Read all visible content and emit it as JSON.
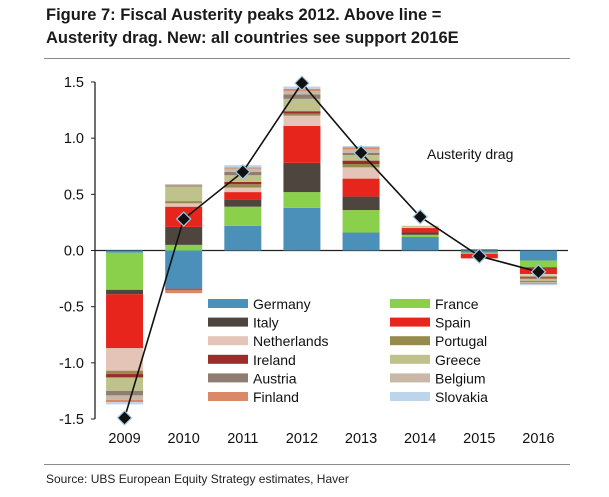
{
  "title_lines": [
    "Figure 7: Fiscal Austerity peaks 2012. Above line =",
    "Austerity drag. New: all countries see support 2016E"
  ],
  "source": "Source:  UBS European Equity Strategy estimates, Haver",
  "chart_data": {
    "type": "bar",
    "stacked": true,
    "categories": [
      "2009",
      "2010",
      "2011",
      "2012",
      "2013",
      "2014",
      "2015",
      "2016"
    ],
    "ylim": [
      -1.5,
      1.5
    ],
    "yticks": [
      "-1.5",
      "-1.0",
      "-0.5",
      "0.0",
      "0.5",
      "1.0",
      "1.5"
    ],
    "ytick_values": [
      -1.5,
      -1.0,
      -0.5,
      0.0,
      0.5,
      1.0,
      1.5
    ],
    "annotation": "Austerity drag",
    "legend_position": "bottom-center",
    "series": [
      {
        "name": "Germany",
        "color": "#4a90b8",
        "values": [
          -0.02,
          -0.34,
          0.22,
          0.38,
          0.16,
          0.12,
          -0.02,
          -0.09
        ]
      },
      {
        "name": "France",
        "color": "#8ad04a",
        "values": [
          -0.33,
          0.05,
          0.17,
          0.14,
          0.2,
          0.02,
          -0.01,
          -0.06
        ]
      },
      {
        "name": "Italy",
        "color": "#4d453e",
        "values": [
          -0.04,
          0.16,
          0.06,
          0.26,
          0.12,
          0.02,
          0.01,
          -0.01
        ]
      },
      {
        "name": "Spain",
        "color": "#e8251d",
        "values": [
          -0.48,
          0.18,
          0.07,
          0.33,
          0.16,
          0.04,
          -0.04,
          -0.05
        ]
      },
      {
        "name": "Netherlands",
        "color": "#e3c4b6",
        "values": [
          -0.2,
          0.03,
          0.04,
          0.09,
          0.1,
          0.01,
          0.0,
          -0.02
        ]
      },
      {
        "name": "Portugal",
        "color": "#968a4e",
        "values": [
          -0.03,
          0.02,
          0.03,
          0.02,
          0.03,
          0.0,
          0.0,
          -0.01
        ]
      },
      {
        "name": "Ireland",
        "color": "#9b2c2b",
        "values": [
          -0.03,
          -0.01,
          0.02,
          0.02,
          0.03,
          0.0,
          0.0,
          -0.01
        ]
      },
      {
        "name": "Greece",
        "color": "#bfc28a",
        "values": [
          -0.12,
          0.13,
          0.06,
          0.11,
          0.05,
          0.01,
          0.0,
          -0.02
        ]
      },
      {
        "name": "Austria",
        "color": "#8f7d72",
        "values": [
          -0.04,
          0.01,
          0.03,
          0.04,
          0.02,
          0.0,
          0.0,
          -0.01
        ]
      },
      {
        "name": "Belgium",
        "color": "#c9b8a8",
        "values": [
          -0.04,
          0.01,
          0.03,
          0.03,
          0.03,
          0.0,
          0.0,
          -0.01
        ]
      },
      {
        "name": "Finland",
        "color": "#d98968",
        "values": [
          -0.02,
          -0.03,
          0.01,
          0.02,
          0.02,
          0.0,
          0.0,
          -0.01
        ]
      },
      {
        "name": "Slovakia",
        "color": "#bdd5ea",
        "values": [
          -0.02,
          0.0,
          0.02,
          0.02,
          0.01,
          0.0,
          0.0,
          -0.01
        ]
      }
    ],
    "total_line": {
      "values": [
        -1.49,
        0.28,
        0.7,
        1.49,
        0.87,
        0.3,
        -0.05,
        -0.19
      ],
      "color": "#111111"
    }
  }
}
